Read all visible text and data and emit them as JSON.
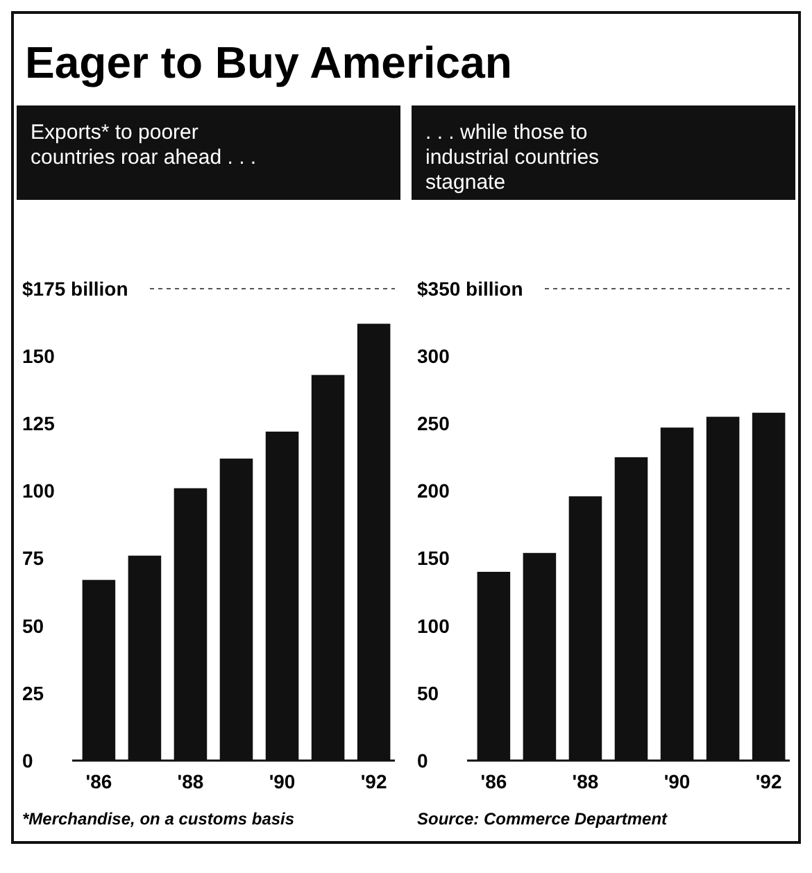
{
  "chart_data": [
    {
      "type": "bar",
      "title": "Eager to Buy American",
      "subtitle": "Exports* to poorer countries roar ahead . . .",
      "categories": [
        "'86",
        null,
        "'88",
        null,
        "'90",
        null,
        "'92"
      ],
      "values": [
        67,
        76,
        101,
        112,
        122,
        143,
        162
      ],
      "color": "#111111",
      "ylim": [
        0,
        175
      ],
      "yticks": [
        0,
        25,
        50,
        75,
        100,
        125,
        150,
        {
          "value": 175,
          "label": "$175 billion"
        }
      ],
      "annotations": [
        "*Merchandise, on a customs basis"
      ]
    },
    {
      "type": "bar",
      "subtitle": ". . . while those to industrial countries stagnate",
      "categories": [
        "'86",
        null,
        "'88",
        null,
        "'90",
        null,
        "'92"
      ],
      "values": [
        140,
        154,
        196,
        225,
        247,
        255,
        258
      ],
      "color": "#111111",
      "ylim": [
        0,
        350
      ],
      "yticks": [
        0,
        50,
        100,
        150,
        200,
        250,
        300,
        {
          "value": 350,
          "label": "$350 billion"
        }
      ],
      "annotations": [
        "Source: Commerce Department"
      ]
    }
  ]
}
